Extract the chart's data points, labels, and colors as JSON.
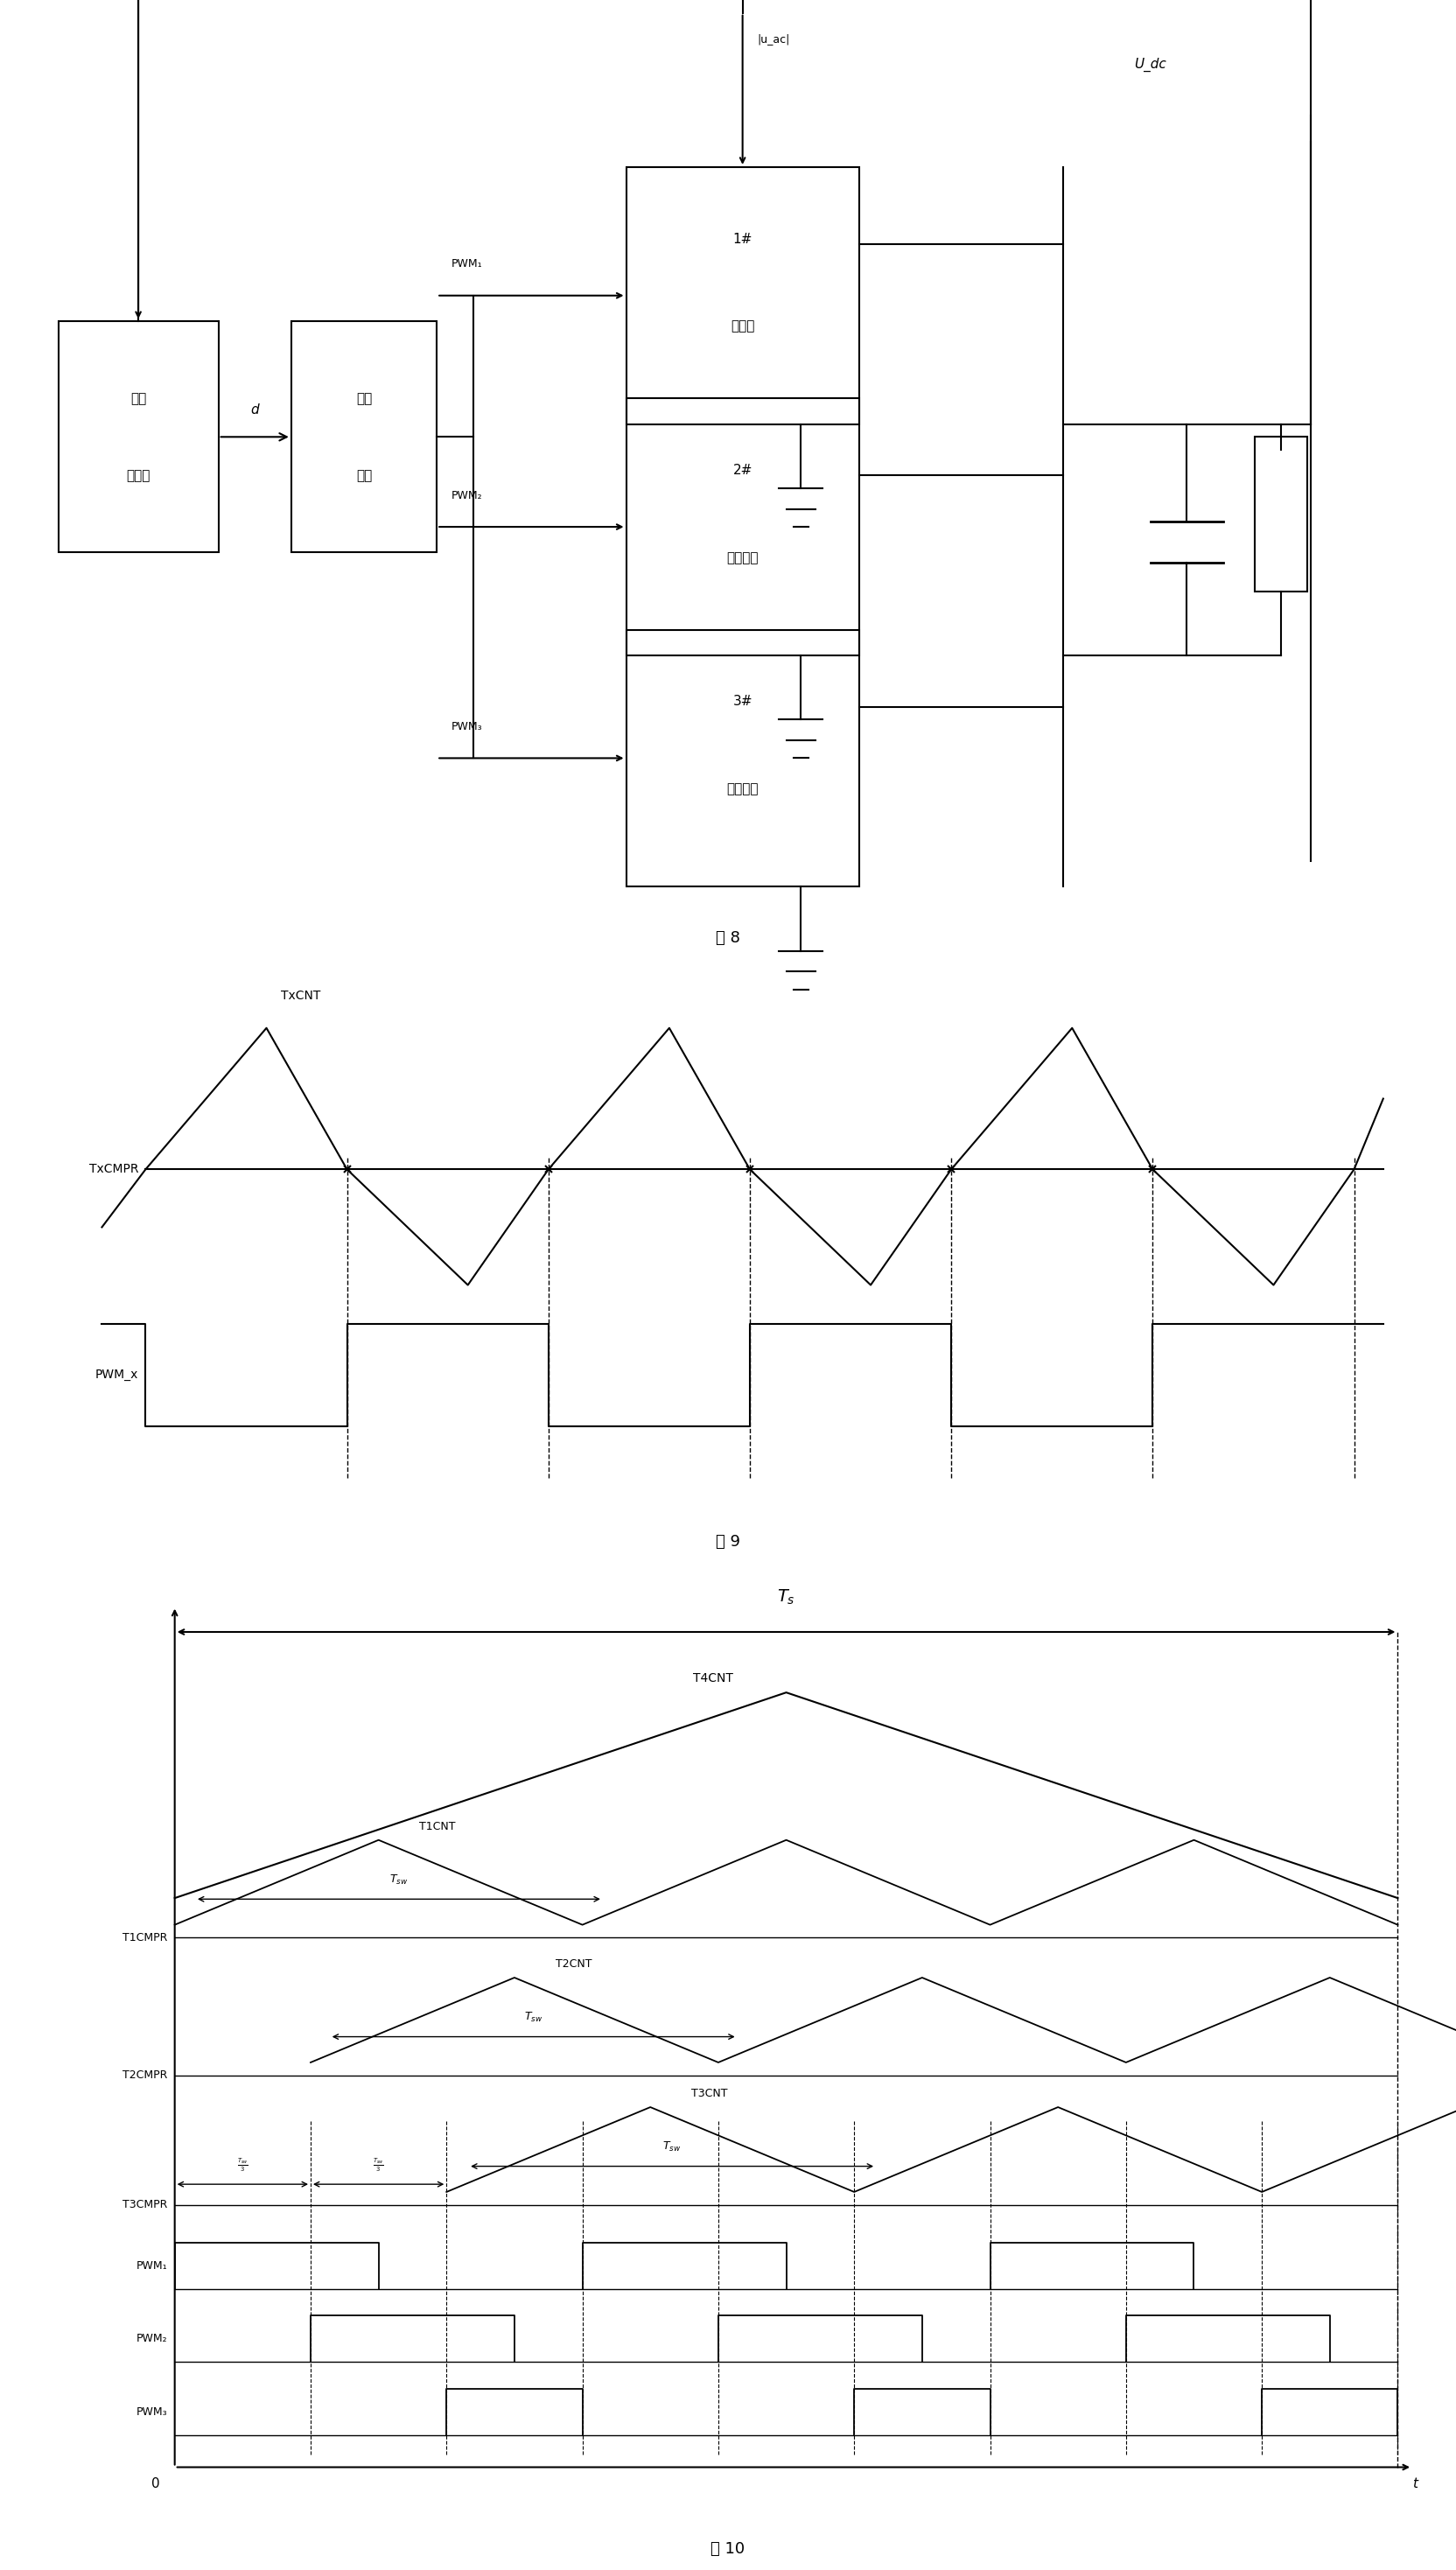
{
  "fig_width": 16.64,
  "fig_height": 29.37,
  "bg_color": "#ffffff",
  "text_color": "#000000",
  "fig8_caption": "图 8",
  "fig9_caption": "图 9",
  "fig10_caption": "图 10"
}
